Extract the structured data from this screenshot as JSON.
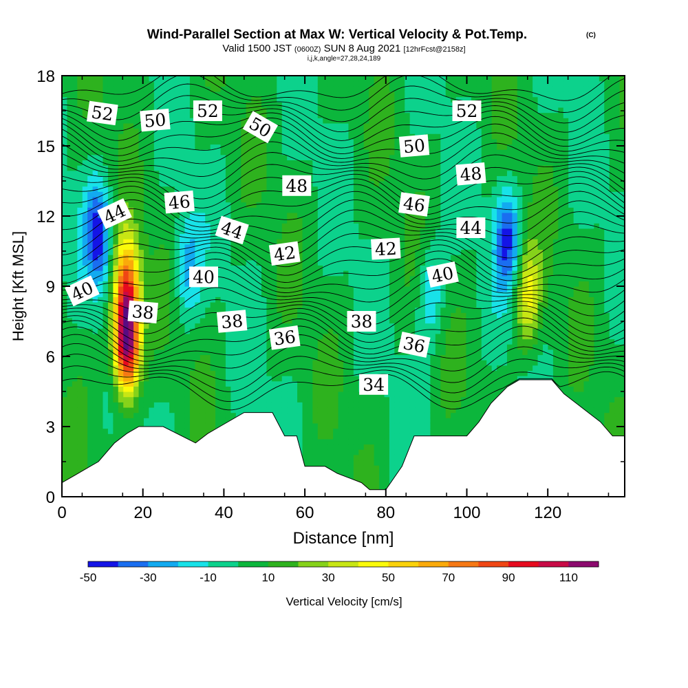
{
  "header": {
    "title": "Wind-Parallel Section at Max W: Vertical Velocity & Pot.Temp.",
    "copyright": "(C)",
    "valid_main": "Valid 1500 JST",
    "valid_utc": "(0600Z)",
    "valid_date": "SUN 8 Aug 2021",
    "forecast": "[12hrFcst@2158z]",
    "ijk": "i,j,k,angle=27,28,24,189"
  },
  "chart_data": {
    "type": "heatmap",
    "xlabel": "Distance [nm]",
    "ylabel": "Height [Kft MSL]",
    "xlim": [
      0,
      139
    ],
    "ylim": [
      0,
      18
    ],
    "x_ticks": [
      0,
      20,
      40,
      60,
      80,
      100,
      120
    ],
    "y_ticks": [
      0,
      3,
      6,
      9,
      12,
      15,
      18
    ],
    "colorbar": {
      "label": "Vertical Velocity [cm/s]",
      "levels": [
        -50,
        -40,
        -30,
        -20,
        -10,
        0,
        10,
        20,
        30,
        40,
        50,
        60,
        70,
        80,
        90,
        100,
        110,
        120
      ],
      "tick_labels": [
        "-50",
        "-30",
        "-10",
        "10",
        "30",
        "50",
        "70",
        "90",
        "110"
      ],
      "colors": [
        "#1414e6",
        "#1a6ef0",
        "#12aaf0",
        "#18e2e8",
        "#0cd28c",
        "#0cb63c",
        "#2eb21e",
        "#86d21a",
        "#c8e614",
        "#fafa0a",
        "#fad20a",
        "#faaa0a",
        "#f67814",
        "#f04614",
        "#e60a1e",
        "#c80a46",
        "#8c0a6e",
        "#5a0a82"
      ]
    },
    "velocity_extremes": [
      {
        "x": 16,
        "y": 6.6,
        "value": 118
      },
      {
        "x": 16,
        "y": 9.2,
        "value": 62
      },
      {
        "x": 115,
        "y": 8.5,
        "value": 40
      },
      {
        "x": 9,
        "y": 11.2,
        "value": -46
      },
      {
        "x": 110,
        "y": 11,
        "value": -42
      },
      {
        "x": 31,
        "y": 9.8,
        "value": -28
      },
      {
        "x": 91,
        "y": 8.8,
        "value": -25
      }
    ],
    "terrain": [
      [
        0,
        0.6
      ],
      [
        3,
        0.9
      ],
      [
        6,
        1.2
      ],
      [
        9,
        1.5
      ],
      [
        13,
        2.3
      ],
      [
        16,
        2.7
      ],
      [
        19,
        3
      ],
      [
        25,
        3
      ],
      [
        33,
        2.3
      ],
      [
        36,
        2.7
      ],
      [
        39,
        3
      ],
      [
        45,
        3.6
      ],
      [
        52,
        3.6
      ],
      [
        55,
        2.6
      ],
      [
        58,
        2.6
      ],
      [
        60,
        1.3
      ],
      [
        65,
        1.3
      ],
      [
        68,
        1.0
      ],
      [
        71,
        0.8
      ],
      [
        74,
        0.6
      ],
      [
        76,
        0.3
      ],
      [
        80,
        0.3
      ],
      [
        84,
        1.3
      ],
      [
        87,
        2.6
      ],
      [
        100,
        2.6
      ],
      [
        103,
        3.2
      ],
      [
        106,
        4.0
      ],
      [
        110,
        4.7
      ],
      [
        113,
        5.0
      ],
      [
        121,
        5.0
      ],
      [
        124,
        4.4
      ],
      [
        127,
        4.0
      ],
      [
        130,
        3.6
      ],
      [
        133,
        3.2
      ],
      [
        136,
        2.6
      ],
      [
        139,
        2.6
      ]
    ],
    "isentrope_levels": [
      34,
      36,
      38,
      40,
      42,
      44,
      46,
      48,
      50,
      52
    ],
    "isentrope_labels": [
      {
        "text": "52",
        "x": 10,
        "y": 16.4,
        "angle": 8
      },
      {
        "text": "50",
        "x": 23,
        "y": 16.1,
        "angle": -5
      },
      {
        "text": "52",
        "x": 36,
        "y": 16.5,
        "angle": 0
      },
      {
        "text": "50",
        "x": 49,
        "y": 15.8,
        "angle": 30
      },
      {
        "text": "50",
        "x": 87,
        "y": 15.0,
        "angle": -5
      },
      {
        "text": "52",
        "x": 100,
        "y": 16.5,
        "angle": 0
      },
      {
        "text": "48",
        "x": 58,
        "y": 13.3,
        "angle": 0
      },
      {
        "text": "48",
        "x": 101,
        "y": 13.8,
        "angle": -5
      },
      {
        "text": "46",
        "x": 29,
        "y": 12.6,
        "angle": -5
      },
      {
        "text": "46",
        "x": 87,
        "y": 12.5,
        "angle": 8
      },
      {
        "text": "44",
        "x": 13,
        "y": 12.1,
        "angle": -25
      },
      {
        "text": "44",
        "x": 42,
        "y": 11.4,
        "angle": 18
      },
      {
        "text": "44",
        "x": 101,
        "y": 11.5,
        "angle": 0
      },
      {
        "text": "42",
        "x": 55,
        "y": 10.4,
        "angle": -8
      },
      {
        "text": "42",
        "x": 80,
        "y": 10.6,
        "angle": -3
      },
      {
        "text": "40",
        "x": 5,
        "y": 8.8,
        "angle": -25
      },
      {
        "text": "40",
        "x": 35,
        "y": 9.4,
        "angle": 0
      },
      {
        "text": "40",
        "x": 94,
        "y": 9.5,
        "angle": -12
      },
      {
        "text": "38",
        "x": 20,
        "y": 7.9,
        "angle": 5
      },
      {
        "text": "38",
        "x": 42,
        "y": 7.5,
        "angle": -5
      },
      {
        "text": "38",
        "x": 74,
        "y": 7.5,
        "angle": 0
      },
      {
        "text": "36",
        "x": 55,
        "y": 6.8,
        "angle": -8
      },
      {
        "text": "36",
        "x": 87,
        "y": 6.5,
        "angle": 12
      },
      {
        "text": "34",
        "x": 77,
        "y": 4.8,
        "angle": 0
      }
    ]
  }
}
